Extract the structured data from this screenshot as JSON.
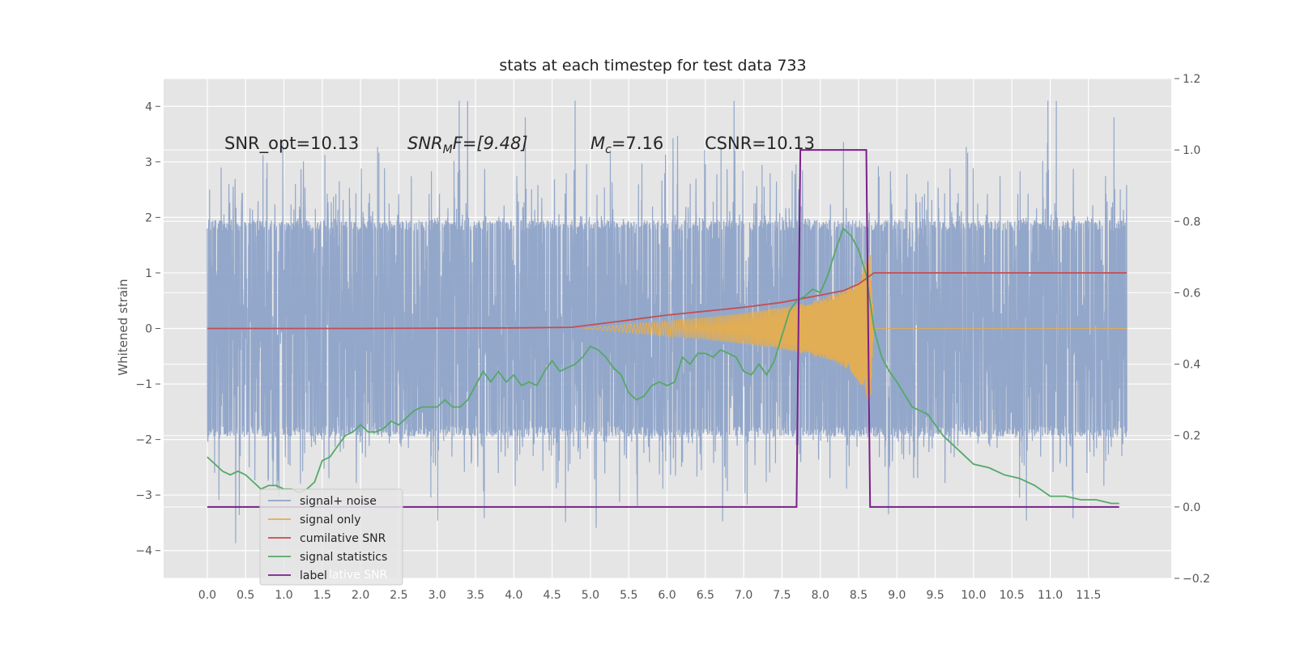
{
  "chart_data": {
    "type": "line",
    "title": "stats at each timestep for test data 733",
    "xlabel": "",
    "ylabel": "Whitened strain",
    "y2label": "",
    "xlim": [
      -0.57,
      12.58
    ],
    "ylim": [
      -4.5,
      4.5
    ],
    "y2lim": [
      -0.2,
      1.2
    ],
    "grid": true,
    "xticks": [
      "0.0",
      "0.5",
      "1.0",
      "1.5",
      "2.0",
      "2.5",
      "3.0",
      "3.5",
      "4.0",
      "4.5",
      "5.0",
      "5.5",
      "6.0",
      "6.5",
      "7.0",
      "7.5",
      "8.0",
      "8.5",
      "9.0",
      "9.5",
      "10.0",
      "10.5",
      "11.0",
      "11.5"
    ],
    "yticks": [
      "4",
      "3",
      "2",
      "1",
      "0",
      "−1",
      "−2",
      "−3",
      "−4"
    ],
    "y2ticks": [
      "1.2",
      "1.0",
      "0.8",
      "0.6",
      "0.4",
      "0.2",
      "0.0",
      "−0.2"
    ],
    "annotations": {
      "snr_opt": "SNR_opt=10.13",
      "snr_mf_main": "SNR",
      "snr_mf_sub": "M",
      "snr_mf_rest": "F=[9.48]",
      "mc_main": "M",
      "mc_sub": "c",
      "mc_rest": "=7.16",
      "csnr": "CSNR=10.13"
    },
    "legend_placement": "lower-left",
    "legend_shadow_text": "lative SNR",
    "series": [
      {
        "name": "signal+ noise",
        "color": "#8ea3c8",
        "axis": "left",
        "kind": "noise",
        "x_range": [
          0.0,
          12.0
        ],
        "envelope_core": 1.95,
        "envelope_peak": [
          -4.1,
          4.1
        ]
      },
      {
        "name": "signal only",
        "color": "#e1ad55",
        "axis": "left",
        "kind": "chirp",
        "x": [
          4.9,
          5.5,
          6.0,
          6.5,
          7.0,
          7.5,
          7.8,
          8.0,
          8.2,
          8.4,
          8.55,
          8.65,
          8.7,
          12.0
        ],
        "envelope": [
          0.0,
          0.08,
          0.14,
          0.2,
          0.28,
          0.38,
          0.46,
          0.53,
          0.62,
          0.78,
          1.05,
          1.4,
          0.0,
          0.0
        ]
      },
      {
        "name": "cumilative SNR",
        "color": "#c44e52",
        "axis": "left",
        "x": [
          0.0,
          2.0,
          4.0,
          4.75,
          5.5,
          6.0,
          6.5,
          7.0,
          7.5,
          8.0,
          8.3,
          8.5,
          8.6,
          8.7,
          12.0
        ],
        "values": [
          0.0,
          0.0,
          0.01,
          0.02,
          0.15,
          0.24,
          0.31,
          0.38,
          0.47,
          0.6,
          0.68,
          0.8,
          0.9,
          1.0,
          1.0
        ]
      },
      {
        "name": "signal statistics",
        "color": "#55a868",
        "axis": "right",
        "x": [
          0.0,
          0.1,
          0.2,
          0.3,
          0.4,
          0.5,
          0.6,
          0.7,
          0.8,
          0.9,
          1.0,
          1.1,
          1.2,
          1.3,
          1.4,
          1.5,
          1.6,
          1.7,
          1.8,
          1.9,
          2.0,
          2.1,
          2.2,
          2.3,
          2.4,
          2.5,
          2.6,
          2.7,
          2.8,
          2.9,
          3.0,
          3.1,
          3.2,
          3.3,
          3.4,
          3.5,
          3.6,
          3.7,
          3.8,
          3.9,
          4.0,
          4.1,
          4.2,
          4.3,
          4.4,
          4.5,
          4.6,
          4.7,
          4.8,
          4.9,
          5.0,
          5.1,
          5.2,
          5.3,
          5.4,
          5.5,
          5.6,
          5.7,
          5.8,
          5.9,
          6.0,
          6.1,
          6.2,
          6.3,
          6.4,
          6.5,
          6.6,
          6.7,
          6.8,
          6.9,
          7.0,
          7.1,
          7.2,
          7.3,
          7.4,
          7.5,
          7.6,
          7.7,
          7.8,
          7.9,
          8.0,
          8.1,
          8.2,
          8.3,
          8.4,
          8.5,
          8.6,
          8.7,
          8.8,
          8.9,
          9.0,
          9.2,
          9.4,
          9.6,
          9.8,
          10.0,
          10.2,
          10.4,
          10.6,
          10.8,
          11.0,
          11.2,
          11.4,
          11.6,
          11.8,
          11.9
        ],
        "values": [
          0.14,
          0.12,
          0.1,
          0.09,
          0.1,
          0.09,
          0.07,
          0.05,
          0.06,
          0.06,
          0.05,
          0.05,
          0.04,
          0.05,
          0.07,
          0.13,
          0.14,
          0.17,
          0.2,
          0.21,
          0.23,
          0.21,
          0.21,
          0.22,
          0.24,
          0.23,
          0.25,
          0.27,
          0.28,
          0.28,
          0.28,
          0.3,
          0.28,
          0.28,
          0.3,
          0.34,
          0.38,
          0.35,
          0.38,
          0.35,
          0.37,
          0.34,
          0.35,
          0.34,
          0.38,
          0.41,
          0.38,
          0.39,
          0.4,
          0.42,
          0.45,
          0.44,
          0.42,
          0.39,
          0.37,
          0.32,
          0.3,
          0.31,
          0.34,
          0.35,
          0.34,
          0.35,
          0.42,
          0.4,
          0.43,
          0.43,
          0.42,
          0.44,
          0.43,
          0.42,
          0.38,
          0.37,
          0.4,
          0.37,
          0.41,
          0.48,
          0.55,
          0.58,
          0.59,
          0.61,
          0.6,
          0.65,
          0.72,
          0.78,
          0.76,
          0.72,
          0.65,
          0.5,
          0.42,
          0.38,
          0.35,
          0.28,
          0.26,
          0.2,
          0.16,
          0.12,
          0.11,
          0.09,
          0.08,
          0.06,
          0.03,
          0.03,
          0.02,
          0.02,
          0.01,
          0.01
        ]
      },
      {
        "name": "label",
        "color": "#7a1f8a",
        "axis": "right",
        "x": [
          0.0,
          7.69,
          7.74,
          8.6,
          8.65,
          11.9
        ],
        "values": [
          0.0,
          0.0,
          1.0,
          1.0,
          0.0,
          0.0
        ]
      }
    ]
  }
}
